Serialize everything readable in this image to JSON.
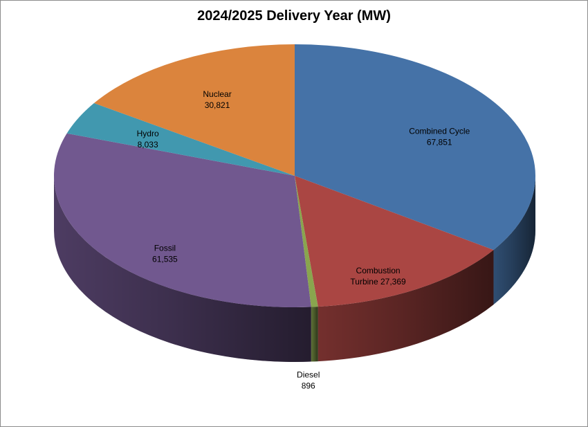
{
  "chart_data": {
    "type": "pie",
    "title": "2024/2025 Delivery Year (MW)",
    "slices": [
      {
        "name": "Combined Cycle",
        "value": 67851,
        "value_label": "67,851",
        "color": "#4572A7"
      },
      {
        "name": "Combustion",
        "value": 27369,
        "value_label": "Turbine 27,369",
        "color": "#AA4643"
      },
      {
        "name": "Diesel",
        "value": 896,
        "value_label": "896",
        "color": "#89A54E"
      },
      {
        "name": "Fossil",
        "value": 61535,
        "value_label": "61,535",
        "color": "#71588F"
      },
      {
        "name": "Hydro",
        "value": 8033,
        "value_label": "8,033",
        "color": "#4198AF"
      },
      {
        "name": "Nuclear",
        "value": 30821,
        "value_label": "30,821",
        "color": "#DB843D"
      }
    ]
  }
}
